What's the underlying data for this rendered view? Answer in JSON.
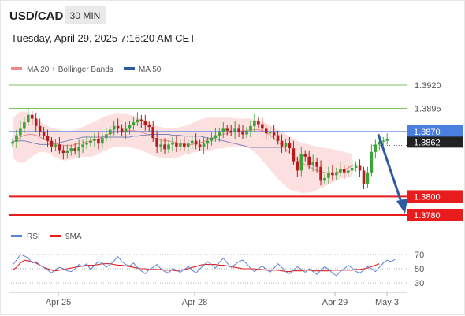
{
  "header": {
    "pair": "USD/CAD",
    "timeframe": "30 MIN",
    "datetime": "Tuesday, April 29, 2025 7:16:20 AM CET"
  },
  "legend_main": [
    {
      "label": "MA 20 + Bollinger Bands",
      "color": "#f08a84"
    },
    {
      "label": "MA 50",
      "color": "#2e5aa0"
    }
  ],
  "legend_rsi": [
    {
      "label": "RSI",
      "color": "#5b84d6"
    },
    {
      "label": "9MA",
      "color": "#e81c1c"
    }
  ],
  "colors": {
    "up": "#3aa33a",
    "down": "#b71c1c",
    "bb_fill": "#fcd9d9",
    "ma20": "#f08a84",
    "ma50": "#7d86b8",
    "support": "#e81c1c",
    "resistance": "#7cc25a",
    "current": "#4a7fe0",
    "arrow": "#2e5aa0"
  },
  "chart_data": [
    {
      "type": "candlestick",
      "ylim": [
        1.3771,
        1.393
      ],
      "ticks_y": [
        {
          "value": 1.392,
          "label": "1.3920",
          "kind": "resistance"
        },
        {
          "value": 1.3895,
          "label": "1.3895",
          "kind": "resistance"
        },
        {
          "value": 1.387,
          "label": "1.3870",
          "kind": "pivot"
        },
        {
          "value": 1.3862,
          "label": "1.3862",
          "kind": "last"
        },
        {
          "value": 1.38,
          "label": "1.3800",
          "kind": "support"
        },
        {
          "value": 1.378,
          "label": "1.3780",
          "kind": "support"
        }
      ],
      "x_ticks": [
        "Apr 25",
        "Apr 28",
        "Apr 29",
        "May 3"
      ],
      "closes": [
        1.3859,
        1.3866,
        1.3873,
        1.388,
        1.3888,
        1.3884,
        1.3876,
        1.387,
        1.3865,
        1.386,
        1.3854,
        1.3856,
        1.385,
        1.3847,
        1.3849,
        1.3852,
        1.3849,
        1.3853,
        1.3856,
        1.3858,
        1.386,
        1.3862,
        1.3857,
        1.3863,
        1.3867,
        1.3872,
        1.3876,
        1.3873,
        1.3869,
        1.3873,
        1.3877,
        1.388,
        1.3883,
        1.3881,
        1.3877,
        1.3875,
        1.3863,
        1.3854,
        1.3856,
        1.3851,
        1.3856,
        1.3858,
        1.3854,
        1.3857,
        1.3853,
        1.3857,
        1.386,
        1.3856,
        1.3853,
        1.3857,
        1.386,
        1.3863,
        1.3866,
        1.3869,
        1.3873,
        1.3871,
        1.3869,
        1.3873,
        1.387,
        1.3867,
        1.3871,
        1.3876,
        1.3881,
        1.3878,
        1.3873,
        1.3868,
        1.3869,
        1.3866,
        1.386,
        1.3854,
        1.3858,
        1.3852,
        1.3838,
        1.3828,
        1.3846,
        1.3843,
        1.3834,
        1.3837,
        1.3832,
        1.3817,
        1.382,
        1.3826,
        1.3823,
        1.3826,
        1.383,
        1.3826,
        1.3828,
        1.3831,
        1.3833,
        1.3828,
        1.3814,
        1.3826,
        1.3848,
        1.3856,
        1.3859,
        1.386,
        1.3862
      ],
      "ma20": [
        1.3858,
        1.3861,
        1.3864,
        1.3866,
        1.3867,
        1.3867,
        1.3866,
        1.3864,
        1.3862,
        1.386,
        1.3858,
        1.3857,
        1.3856,
        1.3855,
        1.3855,
        1.3855,
        1.3856,
        1.3857,
        1.3858,
        1.3859,
        1.386,
        1.3861,
        1.3862,
        1.3864,
        1.3866,
        1.3868,
        1.3869,
        1.387,
        1.387,
        1.3871,
        1.3871,
        1.3871,
        1.387,
        1.3869,
        1.3868,
        1.3866,
        1.3864,
        1.3862,
        1.3861,
        1.386,
        1.386,
        1.3859,
        1.3858,
        1.3857,
        1.3856,
        1.3856,
        1.3856,
        1.3857,
        1.3858,
        1.3859,
        1.3861,
        1.3863,
        1.3865,
        1.3866,
        1.3867,
        1.3868,
        1.3869,
        1.387,
        1.387,
        1.3871,
        1.3871,
        1.3872,
        1.3872,
        1.3872,
        1.3871,
        1.3869,
        1.3866,
        1.3863,
        1.3859,
        1.3855,
        1.3851,
        1.3847,
        1.3843,
        1.384,
        1.3837,
        1.3834,
        1.3832,
        1.383,
        1.3828,
        1.3827,
        1.3826,
        1.3825,
        1.3825,
        1.3826,
        1.3827,
        1.3829,
        1.3831,
        1.3833,
        1.3835
      ],
      "bb_upper": [
        1.3884,
        1.3888,
        1.3891,
        1.3892,
        1.389,
        1.3887,
        1.3884,
        1.3881,
        1.3878,
        1.3876,
        1.3874,
        1.3873,
        1.3872,
        1.3871,
        1.3871,
        1.3871,
        1.3872,
        1.3873,
        1.3875,
        1.3877,
        1.3879,
        1.3881,
        1.3883,
        1.3885,
        1.3887,
        1.3888,
        1.3889,
        1.3889,
        1.3889,
        1.3889,
        1.3888,
        1.3887,
        1.3886,
        1.3884,
        1.3882,
        1.388,
        1.3878,
        1.3876,
        1.3875,
        1.3874,
        1.3874,
        1.3874,
        1.3874,
        1.3875,
        1.3876,
        1.3877,
        1.3879,
        1.3881,
        1.3883,
        1.3884,
        1.3885,
        1.3885,
        1.3885,
        1.3885,
        1.3885,
        1.3885,
        1.3885,
        1.3884,
        1.3884,
        1.3884,
        1.3884,
        1.3884,
        1.3883,
        1.3882,
        1.3881,
        1.3879,
        1.3877,
        1.3874,
        1.3872,
        1.387,
        1.3867,
        1.3865,
        1.3862,
        1.386,
        1.3858,
        1.3857,
        1.3856,
        1.3855,
        1.3854,
        1.3853,
        1.3852,
        1.3852,
        1.3851,
        1.385,
        1.3849,
        1.3848,
        1.3847,
        1.3846
      ],
      "bb_lower": [
        1.3842,
        1.3838,
        1.3836,
        1.3837,
        1.384,
        1.3843,
        1.3846,
        1.3848,
        1.3848,
        1.3847,
        1.3845,
        1.3842,
        1.384,
        1.3839,
        1.3839,
        1.384,
        1.3841,
        1.3842,
        1.3843,
        1.3843,
        1.3843,
        1.3844,
        1.3846,
        1.3848,
        1.385,
        1.3852,
        1.3853,
        1.3854,
        1.3854,
        1.3854,
        1.3853,
        1.3852,
        1.3851,
        1.385,
        1.3848,
        1.3846,
        1.3844,
        1.3843,
        1.3842,
        1.3842,
        1.3842,
        1.3842,
        1.3842,
        1.3843,
        1.3845,
        1.3846,
        1.3847,
        1.3848,
        1.3849,
        1.3849,
        1.3849,
        1.385,
        1.3851,
        1.3852,
        1.3852,
        1.3853,
        1.3853,
        1.3854,
        1.3854,
        1.3854,
        1.3853,
        1.3851,
        1.3848,
        1.3844,
        1.3839,
        1.3834,
        1.3829,
        1.3824,
        1.3819,
        1.3815,
        1.3811,
        1.3808,
        1.3806,
        1.3805,
        1.3804,
        1.3804,
        1.3804,
        1.3805,
        1.3807,
        1.3809,
        1.3811,
        1.3813,
        1.3815,
        1.3817,
        1.3819,
        1.382,
        1.3821,
        1.3822
      ],
      "ma50": [
        1.3859,
        1.386,
        1.386,
        1.386,
        1.3859,
        1.3858,
        1.3857,
        1.3856,
        1.3856,
        1.3856,
        1.3857,
        1.3857,
        1.3858,
        1.3859,
        1.386,
        1.3861,
        1.3862,
        1.3863,
        1.3864,
        1.3864,
        1.3864,
        1.3864,
        1.3864,
        1.3864,
        1.3864,
        1.3864,
        1.3864,
        1.3864,
        1.3864,
        1.3864,
        1.3864,
        1.3865,
        1.3865,
        1.3866,
        1.3866,
        1.3867,
        1.3867,
        1.3867,
        1.3867,
        1.3867,
        1.3867,
        1.3866,
        1.3866,
        1.3866,
        1.3865,
        1.3865,
        1.3865,
        1.3865,
        1.3865,
        1.3864,
        1.3863,
        1.3863,
        1.3862,
        1.3861,
        1.386,
        1.3859,
        1.3858,
        1.3857,
        1.3856,
        1.3855,
        1.3854,
        1.3853,
        1.3853,
        1.3853,
        1.3853,
        1.3853,
        1.3853,
        1.3853,
        1.3853,
        1.3853
      ],
      "forecast_arrow": {
        "from": 1.3862,
        "to": 1.378
      }
    },
    {
      "type": "line",
      "title": "RSI",
      "ylim": [
        24,
        78
      ],
      "ticks_y": [
        70,
        50,
        30
      ],
      "series": [
        {
          "name": "RSI",
          "values": [
            55,
            62,
            70,
            68,
            65,
            58,
            60,
            55,
            52,
            48,
            44,
            49,
            52,
            50,
            47,
            46,
            50,
            56,
            53,
            57,
            49,
            55,
            60,
            58,
            52,
            56,
            61,
            67,
            60,
            56,
            54,
            58,
            52,
            47,
            43,
            49,
            52,
            56,
            50,
            46,
            44,
            50,
            48,
            45,
            49,
            53,
            48,
            44,
            50,
            55,
            60,
            56,
            51,
            59,
            65,
            58,
            52,
            56,
            60,
            62,
            57,
            51,
            46,
            50,
            54,
            49,
            45,
            51,
            57,
            52,
            46,
            43,
            48,
            53,
            49,
            45,
            50,
            46,
            42,
            48,
            53,
            49,
            44,
            40,
            46,
            50,
            55,
            51,
            46,
            44,
            48,
            53,
            50,
            46,
            52,
            58,
            62,
            60,
            63
          ]
        },
        {
          "name": "9MA",
          "values": [
            48,
            52,
            58,
            62,
            61,
            60,
            58,
            55,
            52,
            50,
            48,
            47,
            48,
            49,
            50,
            51,
            52,
            53,
            54,
            55,
            55,
            55,
            56,
            57,
            57,
            57,
            56,
            55,
            55,
            54,
            53,
            52,
            51,
            50,
            50,
            49,
            49,
            49,
            49,
            48,
            48,
            48,
            47,
            48,
            49,
            50,
            52,
            53,
            55,
            56,
            56,
            56,
            56,
            55,
            55,
            54,
            53,
            52,
            51,
            50,
            50,
            50,
            50,
            49,
            49,
            48,
            48,
            48,
            48,
            47,
            46,
            46,
            47,
            47,
            47,
            48,
            48,
            47,
            47,
            47,
            47,
            47,
            48,
            48,
            48,
            48,
            48,
            48,
            49,
            49,
            50,
            51,
            53,
            55,
            57
          ]
        }
      ]
    }
  ]
}
